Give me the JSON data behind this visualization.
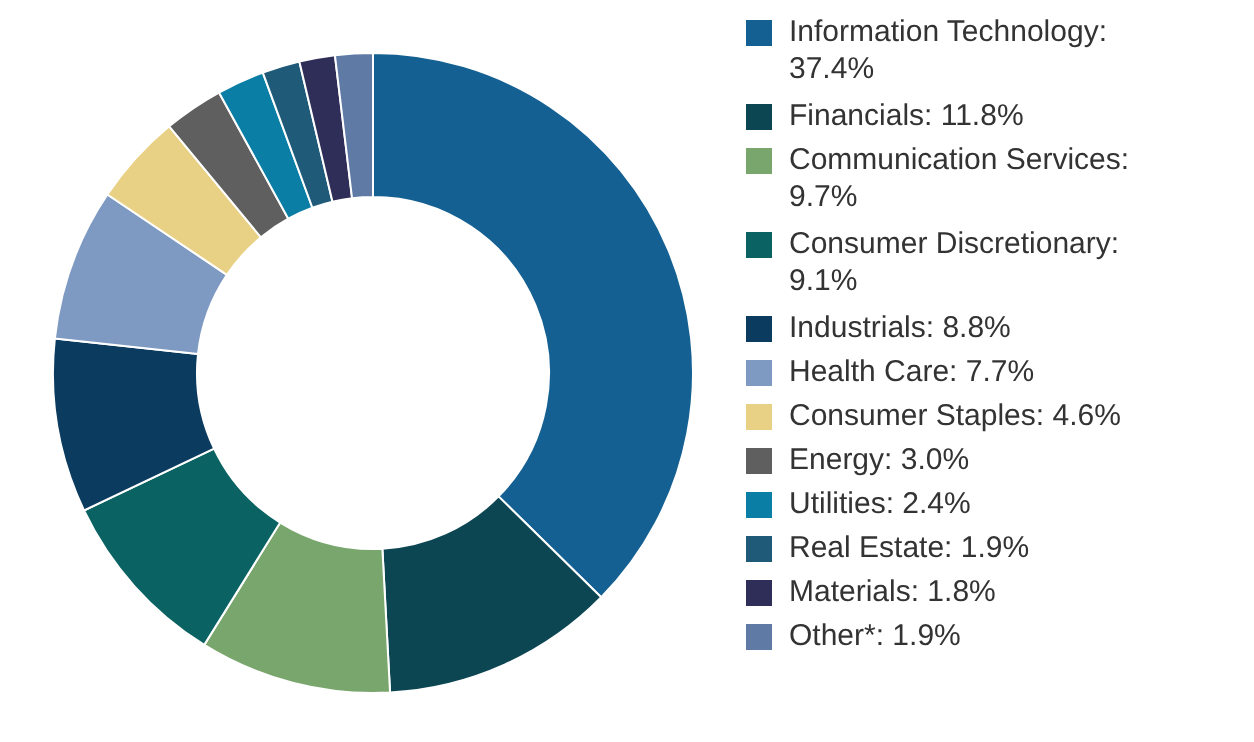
{
  "chart_data": {
    "type": "donut",
    "categories": [
      "Information Technology: 37.4%",
      "Financials: 11.8%",
      "Communication Services: 9.7%",
      "Consumer Discretionary: 9.1%",
      "Industrials: 8.8%",
      "Health Care: 7.7%",
      "Consumer Staples: 4.6%",
      "Energy: 3.0%",
      "Utilities: 2.4%",
      "Real Estate: 1.9%",
      "Materials: 1.8%",
      "Other*: 1.9%"
    ],
    "values": [
      37.4,
      11.8,
      9.7,
      9.1,
      8.8,
      7.7,
      4.6,
      3.0,
      2.4,
      1.9,
      1.8,
      1.9
    ],
    "colors": [
      "#156092",
      "#0d4653",
      "#79a66c",
      "#0a6262",
      "#0b3b5e",
      "#7f9ac2",
      "#e8d185",
      "#5f5f5f",
      "#0a7ea5",
      "#1f5a78",
      "#2e2e58",
      "#5f7ba5"
    ],
    "legend": "right"
  }
}
